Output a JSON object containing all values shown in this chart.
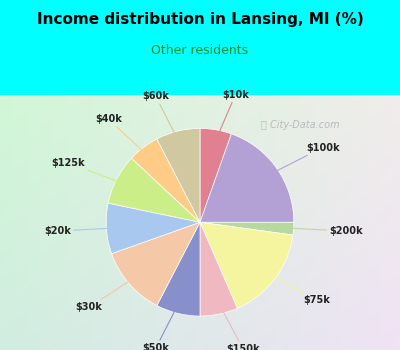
{
  "title": "Income distribution in Lansing, MI (%)",
  "subtitle": "Other residents",
  "title_color": "#000000",
  "subtitle_color": "#228B22",
  "background_top": "#00ffff",
  "background_chart_tl": "#d0ede0",
  "background_chart_br": "#e8f4f8",
  "watermark": "ⓘ City-Data.com",
  "segments": [
    {
      "label": "$10k",
      "value": 5,
      "color": "#e08090"
    },
    {
      "label": "$100k",
      "value": 18,
      "color": "#b3a0d4"
    },
    {
      "label": "$200k",
      "value": 2,
      "color": "#b8d8a0"
    },
    {
      "label": "$75k",
      "value": 15,
      "color": "#f5f5a0"
    },
    {
      "label": "$150k",
      "value": 6,
      "color": "#f0b8c0"
    },
    {
      "label": "$50k",
      "value": 7,
      "color": "#8890cc"
    },
    {
      "label": "$30k",
      "value": 11,
      "color": "#f5c8a8"
    },
    {
      "label": "$20k",
      "value": 8,
      "color": "#a8c8f0"
    },
    {
      "label": "$125k",
      "value": 8,
      "color": "#ccee88"
    },
    {
      "label": "$40k",
      "value": 5,
      "color": "#ffcc88"
    },
    {
      "label": "$60k",
      "value": 7,
      "color": "#d0c8a0"
    }
  ],
  "startangle": 90
}
